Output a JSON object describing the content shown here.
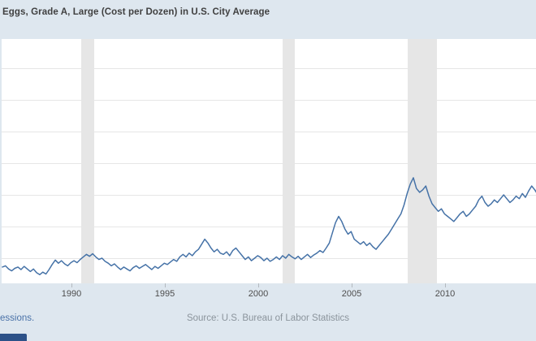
{
  "header": {
    "title": "Eggs, Grade A, Large (Cost per Dozen) in U.S. City Average"
  },
  "footer": {
    "recessions_link_visible_text": "essions.",
    "source_text": "Source: U.S. Bureau of Labor Statistics"
  },
  "colors": {
    "background": "#dee7ef",
    "plot_background": "#ffffff",
    "line": "#4572a7",
    "recession_band": "#e6e6e6",
    "gridline": "#e6e6e6",
    "title_text": "#404040",
    "tick_label": "#4d4d4d",
    "link": "#4a72a8",
    "source_text": "#8b949c"
  },
  "chart_data": {
    "type": "line",
    "title": "Eggs, Grade A, Large (Cost per Dozen) in U.S. City Average",
    "xlabel": "",
    "ylabel": "",
    "x_tick_labels": [
      "1990",
      "1995",
      "2000",
      "2005",
      "2010"
    ],
    "x_ticks": [
      1990,
      1995,
      2000,
      2005,
      2010
    ],
    "x_range": [
      1986.3,
      2015.0
    ],
    "y_range": [
      0.6,
      4.45
    ],
    "y_gridlines": [
      1.0,
      1.5,
      2.0,
      2.5,
      3.0,
      3.5,
      4.0
    ],
    "grid": true,
    "legend": false,
    "recessions": [
      {
        "start": 1990.54,
        "end": 1991.21
      },
      {
        "start": 2001.3,
        "end": 2001.95
      },
      {
        "start": 2008.0,
        "end": 2009.55
      }
    ],
    "series": [
      {
        "name": "Eggs, Grade A, Large (Cost per Dozen), U.S. Dollars",
        "t0": 1986.3,
        "dt": 0.1667,
        "values": [
          0.86,
          0.88,
          0.83,
          0.8,
          0.84,
          0.86,
          0.82,
          0.87,
          0.83,
          0.79,
          0.83,
          0.77,
          0.74,
          0.78,
          0.75,
          0.82,
          0.9,
          0.97,
          0.92,
          0.96,
          0.91,
          0.88,
          0.93,
          0.96,
          0.93,
          0.98,
          1.02,
          1.06,
          1.03,
          1.07,
          1.02,
          0.98,
          1.0,
          0.95,
          0.92,
          0.88,
          0.91,
          0.86,
          0.82,
          0.86,
          0.83,
          0.8,
          0.85,
          0.88,
          0.84,
          0.87,
          0.9,
          0.86,
          0.82,
          0.87,
          0.84,
          0.88,
          0.92,
          0.9,
          0.94,
          0.98,
          0.95,
          1.02,
          1.06,
          1.02,
          1.08,
          1.04,
          1.1,
          1.14,
          1.22,
          1.3,
          1.24,
          1.16,
          1.1,
          1.14,
          1.08,
          1.06,
          1.1,
          1.04,
          1.12,
          1.16,
          1.1,
          1.04,
          0.98,
          1.02,
          0.96,
          1.0,
          1.04,
          1.01,
          0.96,
          1.0,
          0.95,
          0.98,
          1.02,
          0.98,
          1.04,
          1.0,
          1.06,
          1.02,
          0.99,
          1.03,
          0.98,
          1.02,
          1.06,
          1.01,
          1.05,
          1.08,
          1.12,
          1.09,
          1.16,
          1.24,
          1.4,
          1.56,
          1.66,
          1.58,
          1.46,
          1.38,
          1.42,
          1.3,
          1.26,
          1.22,
          1.26,
          1.2,
          1.24,
          1.18,
          1.14,
          1.2,
          1.26,
          1.32,
          1.38,
          1.46,
          1.54,
          1.62,
          1.7,
          1.84,
          2.02,
          2.17,
          2.27,
          2.1,
          2.04,
          2.08,
          2.14,
          1.98,
          1.86,
          1.8,
          1.74,
          1.78,
          1.7,
          1.66,
          1.62,
          1.58,
          1.64,
          1.7,
          1.74,
          1.66,
          1.7,
          1.76,
          1.82,
          1.92,
          1.98,
          1.88,
          1.82,
          1.86,
          1.92,
          1.88,
          1.94,
          2.0,
          1.94,
          1.88,
          1.92,
          1.98,
          1.94,
          2.02,
          1.96,
          2.06,
          2.14,
          2.08,
          2.0
        ]
      }
    ]
  }
}
